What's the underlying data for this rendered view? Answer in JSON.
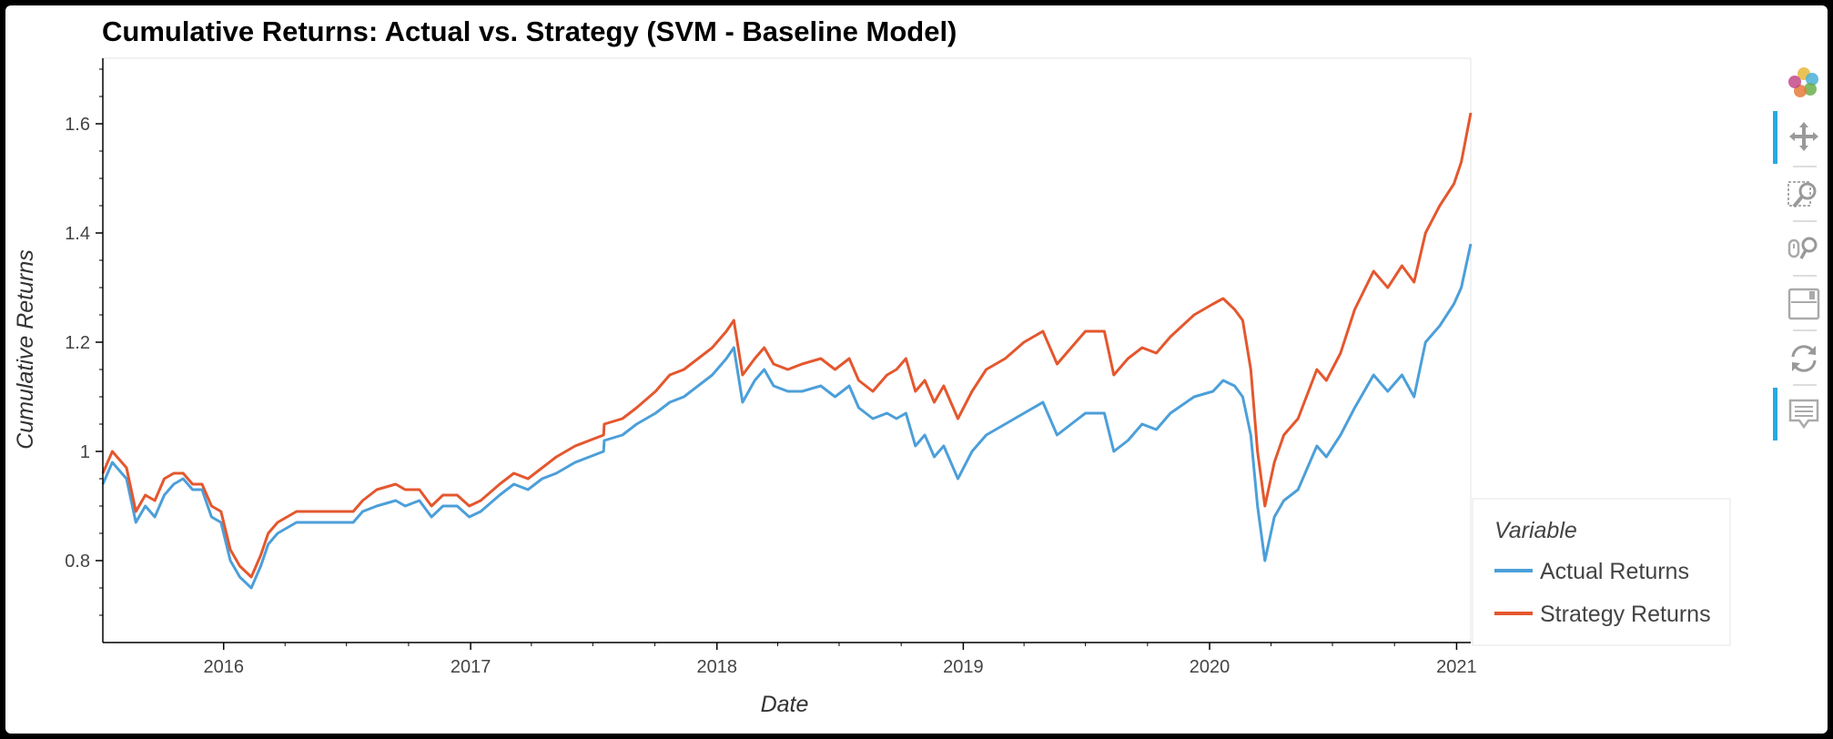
{
  "chart_data": {
    "type": "line",
    "title": "Cumulative Returns: Actual vs. Strategy (SVM - Baseline Model)",
    "xlabel": "Date",
    "ylabel": "Cumulative Returns",
    "xlim": [
      "2015-07-06",
      "2021-01-22"
    ],
    "ylim": [
      0.65,
      1.72
    ],
    "x_ticks": [
      "2016-01-01",
      "2017-01-01",
      "2018-01-01",
      "2019-01-01",
      "2020-01-01",
      "2021-01-01"
    ],
    "x_tick_labels": [
      "2016",
      "2017",
      "2018",
      "2019",
      "2020",
      "2021"
    ],
    "y_ticks": [
      0.8,
      1.0,
      1.2,
      1.4,
      1.6
    ],
    "y_tick_labels": [
      "0.8",
      "1",
      "1.2",
      "1.4",
      "1.6"
    ],
    "legend": {
      "title": "Variable",
      "placement": "right"
    },
    "grid": false,
    "series": [
      {
        "name": "Actual Returns",
        "color": "#4c9fd9",
        "points": [
          [
            "2015-07-06",
            0.94
          ],
          [
            "2015-07-20",
            0.98
          ],
          [
            "2015-08-10",
            0.95
          ],
          [
            "2015-08-24",
            0.87
          ],
          [
            "2015-09-07",
            0.9
          ],
          [
            "2015-09-21",
            0.88
          ],
          [
            "2015-10-05",
            0.92
          ],
          [
            "2015-10-19",
            0.94
          ],
          [
            "2015-11-02",
            0.95
          ],
          [
            "2015-11-16",
            0.93
          ],
          [
            "2015-11-30",
            0.93
          ],
          [
            "2015-12-14",
            0.88
          ],
          [
            "2015-12-28",
            0.87
          ],
          [
            "2016-01-11",
            0.8
          ],
          [
            "2016-01-25",
            0.77
          ],
          [
            "2016-02-11",
            0.75
          ],
          [
            "2016-02-25",
            0.79
          ],
          [
            "2016-03-07",
            0.83
          ],
          [
            "2016-03-21",
            0.85
          ],
          [
            "2016-04-04",
            0.86
          ],
          [
            "2016-04-18",
            0.87
          ],
          [
            "2016-07-11",
            0.87
          ],
          [
            "2016-07-25",
            0.89
          ],
          [
            "2016-08-15",
            0.9
          ],
          [
            "2016-09-12",
            0.91
          ],
          [
            "2016-09-26",
            0.9
          ],
          [
            "2016-10-17",
            0.91
          ],
          [
            "2016-11-04",
            0.88
          ],
          [
            "2016-11-21",
            0.9
          ],
          [
            "2016-12-12",
            0.9
          ],
          [
            "2016-12-30",
            0.88
          ],
          [
            "2017-01-16",
            0.89
          ],
          [
            "2017-02-13",
            0.92
          ],
          [
            "2017-03-06",
            0.94
          ],
          [
            "2017-03-27",
            0.93
          ],
          [
            "2017-04-17",
            0.95
          ],
          [
            "2017-05-08",
            0.96
          ],
          [
            "2017-06-05",
            0.98
          ],
          [
            "2017-06-26",
            0.99
          ],
          [
            "2017-07-17",
            1.0
          ],
          [
            "2017-07-18",
            1.02
          ],
          [
            "2017-08-14",
            1.03
          ],
          [
            "2017-09-04",
            1.05
          ],
          [
            "2017-10-02",
            1.07
          ],
          [
            "2017-10-23",
            1.09
          ],
          [
            "2017-11-13",
            1.1
          ],
          [
            "2017-12-04",
            1.12
          ],
          [
            "2017-12-25",
            1.14
          ],
          [
            "2018-01-15",
            1.17
          ],
          [
            "2018-01-26",
            1.19
          ],
          [
            "2018-02-08",
            1.09
          ],
          [
            "2018-02-26",
            1.13
          ],
          [
            "2018-03-12",
            1.15
          ],
          [
            "2018-03-26",
            1.12
          ],
          [
            "2018-04-16",
            1.11
          ],
          [
            "2018-05-07",
            1.11
          ],
          [
            "2018-06-04",
            1.12
          ],
          [
            "2018-06-25",
            1.1
          ],
          [
            "2018-07-16",
            1.12
          ],
          [
            "2018-07-30",
            1.08
          ],
          [
            "2018-08-20",
            1.06
          ],
          [
            "2018-09-10",
            1.07
          ],
          [
            "2018-09-24",
            1.06
          ],
          [
            "2018-10-08",
            1.07
          ],
          [
            "2018-10-22",
            1.01
          ],
          [
            "2018-11-05",
            1.03
          ],
          [
            "2018-11-19",
            0.99
          ],
          [
            "2018-12-03",
            1.01
          ],
          [
            "2018-12-24",
            0.95
          ],
          [
            "2019-01-14",
            1.0
          ],
          [
            "2019-02-04",
            1.03
          ],
          [
            "2019-03-04",
            1.05
          ],
          [
            "2019-04-01",
            1.07
          ],
          [
            "2019-04-29",
            1.09
          ],
          [
            "2019-05-20",
            1.03
          ],
          [
            "2019-06-10",
            1.05
          ],
          [
            "2019-07-01",
            1.07
          ],
          [
            "2019-07-29",
            1.07
          ],
          [
            "2019-08-12",
            1.0
          ],
          [
            "2019-09-02",
            1.02
          ],
          [
            "2019-09-23",
            1.05
          ],
          [
            "2019-10-14",
            1.04
          ],
          [
            "2019-11-04",
            1.07
          ],
          [
            "2019-12-09",
            1.1
          ],
          [
            "2020-01-06",
            1.11
          ],
          [
            "2020-01-21",
            1.13
          ],
          [
            "2020-02-07",
            1.12
          ],
          [
            "2020-02-19",
            1.1
          ],
          [
            "2020-03-02",
            1.03
          ],
          [
            "2020-03-12",
            0.9
          ],
          [
            "2020-03-23",
            0.8
          ],
          [
            "2020-04-06",
            0.88
          ],
          [
            "2020-04-20",
            0.91
          ],
          [
            "2020-05-11",
            0.93
          ],
          [
            "2020-06-08",
            1.01
          ],
          [
            "2020-06-22",
            0.99
          ],
          [
            "2020-07-13",
            1.03
          ],
          [
            "2020-08-03",
            1.08
          ],
          [
            "2020-08-31",
            1.14
          ],
          [
            "2020-09-21",
            1.11
          ],
          [
            "2020-10-12",
            1.14
          ],
          [
            "2020-10-30",
            1.1
          ],
          [
            "2020-11-16",
            1.2
          ],
          [
            "2020-12-07",
            1.23
          ],
          [
            "2020-12-28",
            1.27
          ],
          [
            "2021-01-08",
            1.3
          ],
          [
            "2021-01-22",
            1.38
          ]
        ]
      },
      {
        "name": "Strategy Returns",
        "color": "#e4572e",
        "points": [
          [
            "2015-07-06",
            0.96
          ],
          [
            "2015-07-20",
            1.0
          ],
          [
            "2015-08-10",
            0.97
          ],
          [
            "2015-08-24",
            0.89
          ],
          [
            "2015-09-07",
            0.92
          ],
          [
            "2015-09-21",
            0.91
          ],
          [
            "2015-10-05",
            0.95
          ],
          [
            "2015-10-19",
            0.96
          ],
          [
            "2015-11-02",
            0.96
          ],
          [
            "2015-11-16",
            0.94
          ],
          [
            "2015-11-30",
            0.94
          ],
          [
            "2015-12-14",
            0.9
          ],
          [
            "2015-12-28",
            0.89
          ],
          [
            "2016-01-11",
            0.82
          ],
          [
            "2016-01-25",
            0.79
          ],
          [
            "2016-02-11",
            0.77
          ],
          [
            "2016-02-25",
            0.81
          ],
          [
            "2016-03-07",
            0.85
          ],
          [
            "2016-03-21",
            0.87
          ],
          [
            "2016-04-04",
            0.88
          ],
          [
            "2016-04-18",
            0.89
          ],
          [
            "2016-07-11",
            0.89
          ],
          [
            "2016-07-25",
            0.91
          ],
          [
            "2016-08-15",
            0.93
          ],
          [
            "2016-09-12",
            0.94
          ],
          [
            "2016-09-26",
            0.93
          ],
          [
            "2016-10-17",
            0.93
          ],
          [
            "2016-11-04",
            0.9
          ],
          [
            "2016-11-21",
            0.92
          ],
          [
            "2016-12-12",
            0.92
          ],
          [
            "2016-12-30",
            0.9
          ],
          [
            "2017-01-16",
            0.91
          ],
          [
            "2017-02-13",
            0.94
          ],
          [
            "2017-03-06",
            0.96
          ],
          [
            "2017-03-27",
            0.95
          ],
          [
            "2017-04-17",
            0.97
          ],
          [
            "2017-05-08",
            0.99
          ],
          [
            "2017-06-05",
            1.01
          ],
          [
            "2017-06-26",
            1.02
          ],
          [
            "2017-07-17",
            1.03
          ],
          [
            "2017-07-18",
            1.05
          ],
          [
            "2017-08-14",
            1.06
          ],
          [
            "2017-09-04",
            1.08
          ],
          [
            "2017-10-02",
            1.11
          ],
          [
            "2017-10-23",
            1.14
          ],
          [
            "2017-11-13",
            1.15
          ],
          [
            "2017-12-04",
            1.17
          ],
          [
            "2017-12-25",
            1.19
          ],
          [
            "2018-01-15",
            1.22
          ],
          [
            "2018-01-26",
            1.24
          ],
          [
            "2018-02-08",
            1.14
          ],
          [
            "2018-02-26",
            1.17
          ],
          [
            "2018-03-12",
            1.19
          ],
          [
            "2018-03-26",
            1.16
          ],
          [
            "2018-04-16",
            1.15
          ],
          [
            "2018-05-07",
            1.16
          ],
          [
            "2018-06-04",
            1.17
          ],
          [
            "2018-06-25",
            1.15
          ],
          [
            "2018-07-16",
            1.17
          ],
          [
            "2018-07-30",
            1.13
          ],
          [
            "2018-08-20",
            1.11
          ],
          [
            "2018-09-10",
            1.14
          ],
          [
            "2018-09-24",
            1.15
          ],
          [
            "2018-10-08",
            1.17
          ],
          [
            "2018-10-22",
            1.11
          ],
          [
            "2018-11-05",
            1.13
          ],
          [
            "2018-11-19",
            1.09
          ],
          [
            "2018-12-03",
            1.12
          ],
          [
            "2018-12-24",
            1.06
          ],
          [
            "2019-01-14",
            1.11
          ],
          [
            "2019-02-04",
            1.15
          ],
          [
            "2019-03-04",
            1.17
          ],
          [
            "2019-04-01",
            1.2
          ],
          [
            "2019-04-29",
            1.22
          ],
          [
            "2019-05-20",
            1.16
          ],
          [
            "2019-06-10",
            1.19
          ],
          [
            "2019-07-01",
            1.22
          ],
          [
            "2019-07-29",
            1.22
          ],
          [
            "2019-08-12",
            1.14
          ],
          [
            "2019-09-02",
            1.17
          ],
          [
            "2019-09-23",
            1.19
          ],
          [
            "2019-10-14",
            1.18
          ],
          [
            "2019-11-04",
            1.21
          ],
          [
            "2019-12-09",
            1.25
          ],
          [
            "2020-01-06",
            1.27
          ],
          [
            "2020-01-21",
            1.28
          ],
          [
            "2020-02-07",
            1.26
          ],
          [
            "2020-02-19",
            1.24
          ],
          [
            "2020-03-02",
            1.15
          ],
          [
            "2020-03-12",
            1.0
          ],
          [
            "2020-03-23",
            0.9
          ],
          [
            "2020-04-06",
            0.98
          ],
          [
            "2020-04-20",
            1.03
          ],
          [
            "2020-05-11",
            1.06
          ],
          [
            "2020-06-08",
            1.15
          ],
          [
            "2020-06-22",
            1.13
          ],
          [
            "2020-07-13",
            1.18
          ],
          [
            "2020-08-03",
            1.26
          ],
          [
            "2020-08-31",
            1.33
          ],
          [
            "2020-09-21",
            1.3
          ],
          [
            "2020-10-12",
            1.34
          ],
          [
            "2020-10-30",
            1.31
          ],
          [
            "2020-11-16",
            1.4
          ],
          [
            "2020-12-07",
            1.45
          ],
          [
            "2020-12-28",
            1.49
          ],
          [
            "2021-01-08",
            1.53
          ],
          [
            "2021-01-22",
            1.62
          ]
        ]
      }
    ]
  },
  "toolbar": {
    "tools": [
      {
        "name": "bokeh-logo-icon",
        "active": false
      },
      {
        "name": "pan-tool-icon",
        "active": true
      },
      {
        "name": "box-zoom-tool-icon",
        "active": false
      },
      {
        "name": "wheel-zoom-tool-icon",
        "active": false
      },
      {
        "name": "save-tool-icon",
        "active": false
      },
      {
        "name": "reset-tool-icon",
        "active": false
      },
      {
        "name": "hover-tool-icon",
        "active": true
      }
    ]
  }
}
